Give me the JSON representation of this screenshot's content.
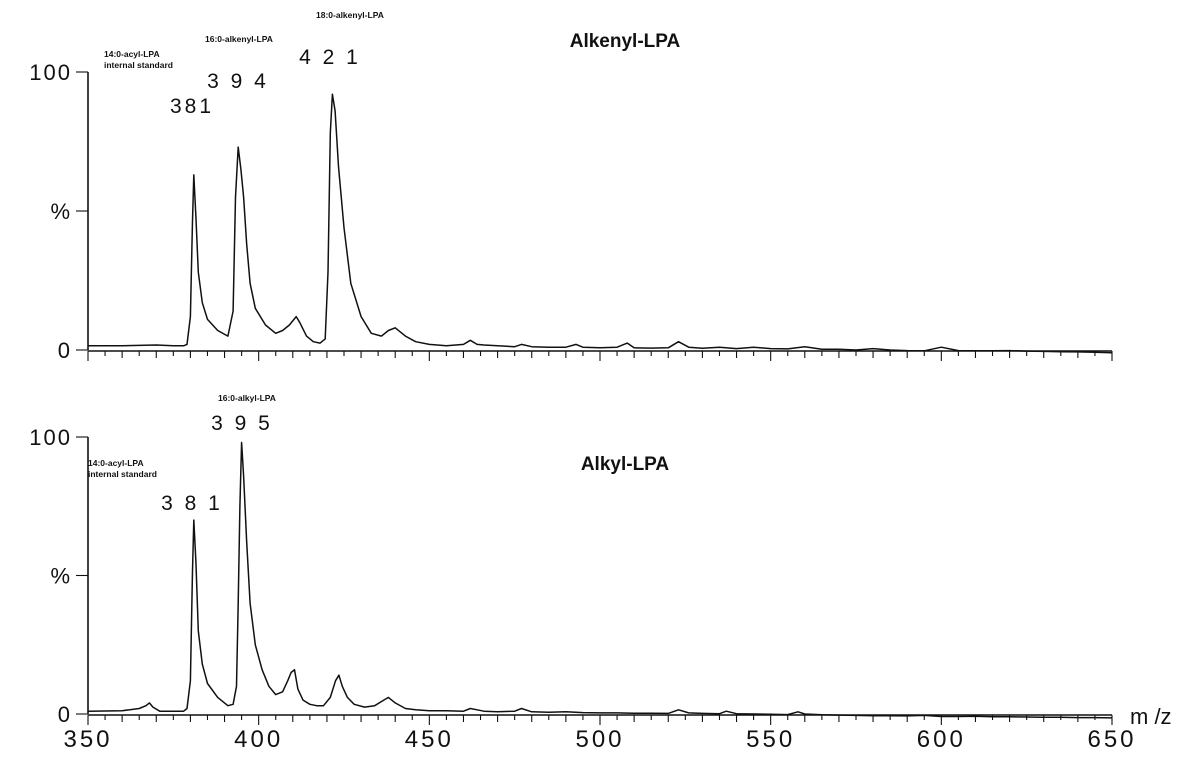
{
  "chart_data": [
    {
      "type": "line",
      "title": "Alkenyl-LPA",
      "xlabel": "",
      "ylabel": "%",
      "xlim": [
        350,
        650
      ],
      "ylim": [
        0,
        100
      ],
      "y_ticks": [
        "0",
        "%",
        "100"
      ],
      "x_ticks": [],
      "series": [
        {
          "x": [
            350,
            360,
            370,
            375,
            378,
            379,
            380,
            380.6,
            381,
            381.6,
            382.3,
            383.5,
            385,
            388,
            391,
            392.5,
            393.2,
            394,
            394.8,
            395.6,
            396.5,
            397.5,
            399,
            402,
            405,
            407,
            409,
            411,
            412,
            414,
            416,
            418,
            419.5,
            420.3,
            421,
            421.6,
            422.4,
            423.4,
            425,
            427,
            430,
            433,
            436,
            438,
            440,
            443,
            446,
            450,
            455,
            460,
            462,
            464,
            466,
            470,
            475,
            477,
            480,
            485,
            490,
            493,
            495,
            500,
            505,
            508,
            510,
            515,
            520,
            523,
            526,
            530,
            535,
            540,
            545,
            550,
            555,
            560,
            565,
            570,
            575,
            580,
            585,
            590,
            595,
            600,
            605,
            610,
            615,
            620,
            625,
            630,
            635,
            640,
            645,
            650
          ],
          "y": [
            1.5,
            1.5,
            1.8,
            1.5,
            1.5,
            2,
            12,
            45,
            63,
            48,
            28,
            17,
            11,
            7,
            5,
            14,
            55,
            73,
            65,
            55,
            38,
            24,
            15,
            9,
            6,
            7,
            9,
            12,
            10,
            5,
            3,
            2.5,
            4,
            28,
            78,
            92,
            86,
            66,
            44,
            24,
            12,
            6,
            5,
            7,
            8,
            5,
            3,
            2,
            1.5,
            2,
            3.5,
            2,
            1.8,
            1.5,
            1.2,
            2,
            1.2,
            1,
            1,
            2,
            1,
            0.8,
            1,
            2.5,
            0.8,
            0.7,
            0.8,
            3,
            1,
            0.6,
            1,
            0.5,
            1,
            0.5,
            0.4,
            1.2,
            0.3,
            0.3,
            0,
            0.5,
            0,
            -0.2,
            -0.3,
            1,
            -0.2,
            -0.3,
            -0.3,
            -0.2,
            -0.4,
            -0.5,
            -0.6,
            -0.7,
            -0.8,
            -1
          ]
        }
      ],
      "peaks": [
        {
          "x": 381,
          "label": "381",
          "note_lines": [
            "14:0-acyl-LPA",
            "internal standard"
          ]
        },
        {
          "x": 394,
          "label": "3 9 4",
          "note_lines": [
            "16:0-alkenyl-LPA"
          ]
        },
        {
          "x": 421,
          "label": "4 2 1",
          "note_lines": [
            "18:0-alkenyl-LPA"
          ]
        }
      ]
    },
    {
      "type": "line",
      "title": "Alkyl-LPA",
      "xlabel": "m /z",
      "ylabel": "%",
      "xlim": [
        350,
        650
      ],
      "ylim": [
        0,
        100
      ],
      "y_ticks": [
        "0",
        "%",
        "100"
      ],
      "x_ticks": [
        "350",
        "400",
        "450",
        "500",
        "550",
        "600",
        "650"
      ],
      "series": [
        {
          "x": [
            350,
            360,
            365,
            367,
            368,
            369,
            371,
            375,
            378,
            379,
            380,
            380.6,
            381,
            381.6,
            382.3,
            383.5,
            385,
            388,
            391,
            392.5,
            393.5,
            394,
            394.5,
            395,
            395.6,
            396.5,
            397.5,
            399,
            401,
            403,
            405,
            407,
            408.5,
            409.5,
            410.5,
            411.5,
            413,
            415,
            417,
            419,
            421,
            422.5,
            423.5,
            424.5,
            426,
            428,
            431,
            434,
            436,
            438,
            440,
            443,
            446,
            450,
            455,
            460,
            462,
            464,
            466,
            470,
            475,
            477,
            480,
            485,
            490,
            495,
            500,
            505,
            510,
            515,
            520,
            523,
            526,
            530,
            535,
            537,
            540,
            545,
            550,
            555,
            558,
            560,
            565,
            570,
            575,
            580,
            585,
            590,
            595,
            600,
            605,
            610,
            615,
            620,
            625,
            630,
            635,
            640,
            645,
            650
          ],
          "y": [
            1,
            1.2,
            2,
            3,
            4,
            2.5,
            1,
            1,
            1,
            2,
            12,
            50,
            70,
            55,
            30,
            18,
            11,
            6,
            3,
            3.5,
            10,
            40,
            75,
            98,
            86,
            62,
            40,
            25,
            16,
            10,
            7,
            8,
            12,
            15,
            16,
            9,
            5,
            3.5,
            3,
            3,
            6,
            12,
            14,
            10,
            6,
            3.5,
            2.5,
            3,
            4.5,
            6,
            4,
            2,
            1.5,
            1.2,
            1.2,
            1,
            2,
            1.5,
            1,
            0.8,
            1,
            2,
            0.8,
            0.6,
            0.8,
            0.5,
            0.4,
            0.4,
            0.3,
            0.3,
            0.2,
            1.5,
            0.4,
            0.2,
            0.1,
            1,
            0.1,
            0,
            -0.1,
            -0.2,
            0.8,
            0,
            -0.3,
            -0.4,
            -0.5,
            -0.6,
            -0.6,
            -0.7,
            -0.5,
            -0.9,
            -0.9,
            -0.8,
            -1,
            -1,
            -1.1,
            -1.2,
            -1.2,
            -1.3,
            -1.3,
            -1.4
          ]
        }
      ],
      "peaks": [
        {
          "x": 381,
          "label": "3 8 1",
          "note_lines": [
            "14:0-acyl-LPA",
            "internal standard"
          ]
        },
        {
          "x": 395,
          "label": "3 9 5",
          "note_lines": [
            "16:0-alkyl-LPA"
          ]
        }
      ]
    }
  ]
}
